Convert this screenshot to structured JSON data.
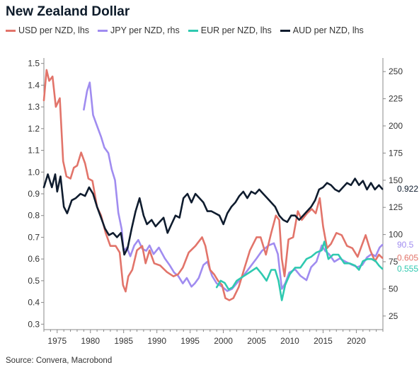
{
  "title": "New Zealand Dollar",
  "source": "Source: Convera, Macrobond",
  "colors": {
    "usd": "#e2746a",
    "jpy": "#a08cf0",
    "eur": "#2fc9b0",
    "aud": "#0f1c2e"
  },
  "chart_data": {
    "type": "line",
    "title": "New Zealand Dollar",
    "xlim": [
      1973,
      2024
    ],
    "x_ticks": [
      1975,
      1980,
      1985,
      1990,
      1995,
      2000,
      2005,
      2010,
      2015,
      2020
    ],
    "left_axis": {
      "ylim": [
        0.275,
        1.525
      ],
      "ticks": [
        "0.3",
        "0.4",
        "0.5",
        "0.6",
        "0.7",
        "0.8",
        "0.9",
        "1.0",
        "1.1",
        "1.2",
        "1.3",
        "1.4",
        "1.5"
      ]
    },
    "right_axis": {
      "ylim": [
        12.5,
        262.5
      ],
      "ticks": [
        "25",
        "50",
        "75",
        "100",
        "125",
        "150",
        "175",
        "200",
        "225",
        "250"
      ]
    },
    "grid": false,
    "legend_position": "top",
    "end_labels": {
      "aud": "0.922",
      "jpy": "90.5",
      "usd": "0.605",
      "eur": "0.555"
    },
    "series": [
      {
        "name": "USD per NZD, lhs",
        "key": "usd",
        "axis": "left",
        "x": [
          1973.0,
          1973.4,
          1973.8,
          1974.3,
          1974.8,
          1975.4,
          1975.9,
          1976.4,
          1977.0,
          1977.5,
          1978.0,
          1978.6,
          1979.2,
          1979.7,
          1980.3,
          1981.0,
          1981.6,
          1982.3,
          1983.0,
          1983.8,
          1984.4,
          1984.9,
          1985.3,
          1985.7,
          1986.3,
          1987.0,
          1987.8,
          1988.3,
          1988.9,
          1989.6,
          1990.5,
          1991.5,
          1992.5,
          1993.2,
          1993.9,
          1994.8,
          1995.8,
          1996.8,
          1997.3,
          1998.0,
          1998.6,
          1999.2,
          1999.8,
          2000.3,
          2000.9,
          2001.5,
          2002.3,
          2003.2,
          2004.0,
          2005.0,
          2005.6,
          2006.4,
          2007.2,
          2007.9,
          2008.4,
          2008.8,
          2009.2,
          2009.8,
          2010.5,
          2011.2,
          2011.8,
          2012.6,
          2013.3,
          2013.9,
          2014.5,
          2015.0,
          2015.6,
          2016.2,
          2017.0,
          2017.8,
          2018.6,
          2019.4,
          2020.2,
          2020.8,
          2021.4,
          2022.1,
          2022.8,
          2023.4,
          2023.9
        ],
        "y": [
          1.33,
          1.47,
          1.42,
          1.44,
          1.3,
          1.34,
          1.05,
          0.98,
          0.97,
          1.02,
          1.03,
          1.09,
          1.04,
          0.97,
          0.96,
          0.84,
          0.8,
          0.72,
          0.66,
          0.66,
          0.63,
          0.48,
          0.45,
          0.52,
          0.55,
          0.64,
          0.66,
          0.58,
          0.64,
          0.58,
          0.57,
          0.54,
          0.52,
          0.53,
          0.56,
          0.63,
          0.66,
          0.7,
          0.66,
          0.55,
          0.53,
          0.5,
          0.48,
          0.42,
          0.41,
          0.42,
          0.47,
          0.56,
          0.64,
          0.7,
          0.7,
          0.62,
          0.72,
          0.8,
          0.78,
          0.6,
          0.52,
          0.69,
          0.7,
          0.82,
          0.78,
          0.81,
          0.83,
          0.81,
          0.88,
          0.75,
          0.65,
          0.67,
          0.72,
          0.71,
          0.66,
          0.65,
          0.61,
          0.66,
          0.71,
          0.64,
          0.59,
          0.62,
          0.605
        ]
      },
      {
        "name": "JPY per NZD, rhs",
        "key": "jpy",
        "axis": "right",
        "x": [
          1979.0,
          1979.5,
          1979.9,
          1980.4,
          1981.0,
          1981.6,
          1982.1,
          1982.7,
          1983.2,
          1983.7,
          1984.2,
          1984.7,
          1985.0,
          1985.5,
          1986.0,
          1986.6,
          1987.2,
          1987.8,
          1988.4,
          1988.9,
          1989.5,
          1990.3,
          1991.2,
          1991.9,
          1992.6,
          1993.2,
          1993.9,
          1994.5,
          1995.2,
          1995.7,
          1996.3,
          1997.0,
          1997.6,
          1998.3,
          1999.0,
          1999.8,
          2000.6,
          2001.3,
          2002.0,
          2003.0,
          2004.0,
          2005.0,
          2005.8,
          2006.8,
          2007.6,
          2008.2,
          2008.8,
          2009.3,
          2009.9,
          2010.8,
          2011.6,
          2012.5,
          2013.2,
          2014.0,
          2014.8,
          2015.3,
          2015.9,
          2016.7,
          2017.5,
          2018.4,
          2019.4,
          2020.2,
          2020.9,
          2021.6,
          2022.3,
          2022.9,
          2023.5,
          2023.9
        ],
        "y": [
          215,
          232,
          240,
          210,
          200,
          190,
          180,
          175,
          160,
          150,
          120,
          105,
          85,
          88,
          80,
          90,
          95,
          87,
          85,
          90,
          82,
          88,
          78,
          72,
          65,
          62,
          55,
          60,
          52,
          55,
          60,
          72,
          75,
          62,
          55,
          52,
          48,
          50,
          55,
          62,
          70,
          78,
          85,
          90,
          92,
          82,
          50,
          55,
          65,
          68,
          62,
          58,
          70,
          75,
          90,
          85,
          82,
          75,
          78,
          75,
          72,
          70,
          72,
          79,
          82,
          80,
          88,
          90.5
        ]
      },
      {
        "name": "EUR per NZD, lhs",
        "key": "eur",
        "axis": "left",
        "x": [
          1999.0,
          1999.6,
          2000.2,
          2000.8,
          2001.4,
          2002.0,
          2003.0,
          2004.0,
          2005.0,
          2005.8,
          2006.5,
          2007.2,
          2007.8,
          2008.3,
          2008.8,
          2009.3,
          2010.0,
          2010.8,
          2011.6,
          2012.5,
          2013.2,
          2014.0,
          2014.8,
          2015.2,
          2015.8,
          2016.5,
          2017.3,
          2018.2,
          2019.0,
          2019.8,
          2020.4,
          2021.0,
          2021.7,
          2022.3,
          2022.9,
          2023.4,
          2023.9
        ],
        "y": [
          0.47,
          0.5,
          0.49,
          0.46,
          0.47,
          0.5,
          0.52,
          0.54,
          0.56,
          0.53,
          0.5,
          0.55,
          0.55,
          0.5,
          0.41,
          0.48,
          0.53,
          0.56,
          0.56,
          0.6,
          0.61,
          0.63,
          0.64,
          0.68,
          0.6,
          0.62,
          0.62,
          0.58,
          0.58,
          0.57,
          0.55,
          0.59,
          0.6,
          0.6,
          0.59,
          0.57,
          0.555
        ]
      },
      {
        "name": "AUD per NZD, lhs",
        "key": "aud",
        "axis": "left",
        "x": [
          1973.0,
          1973.6,
          1974.2,
          1974.7,
          1975.0,
          1975.5,
          1976.0,
          1976.5,
          1977.2,
          1977.8,
          1978.5,
          1979.2,
          1979.8,
          1980.4,
          1981.0,
          1981.6,
          1982.2,
          1982.8,
          1983.4,
          1984.0,
          1984.6,
          1985.1,
          1985.6,
          1986.2,
          1986.8,
          1987.4,
          1988.0,
          1988.5,
          1989.2,
          1989.8,
          1990.4,
          1991.0,
          1991.6,
          1992.2,
          1992.8,
          1993.4,
          1994.0,
          1994.6,
          1995.2,
          1995.8,
          1996.4,
          1997.0,
          1997.6,
          1998.2,
          1998.8,
          1999.4,
          2000.0,
          2000.6,
          2001.2,
          2001.8,
          2002.4,
          2003.0,
          2003.6,
          2004.2,
          2004.8,
          2005.4,
          2006.0,
          2006.6,
          2007.2,
          2007.8,
          2008.4,
          2009.0,
          2009.6,
          2010.2,
          2010.8,
          2011.4,
          2012.0,
          2012.6,
          2013.2,
          2013.8,
          2014.4,
          2015.0,
          2015.6,
          2016.2,
          2016.8,
          2017.4,
          2018.0,
          2018.6,
          2019.2,
          2019.8,
          2020.4,
          2021.0,
          2021.6,
          2022.2,
          2022.8,
          2023.4,
          2023.9
        ],
        "y": [
          0.93,
          0.99,
          0.93,
          0.99,
          0.91,
          0.98,
          0.84,
          0.81,
          0.87,
          0.88,
          0.9,
          0.89,
          0.93,
          0.9,
          0.84,
          0.79,
          0.74,
          0.71,
          0.72,
          0.7,
          0.72,
          0.62,
          0.65,
          0.74,
          0.82,
          0.88,
          0.8,
          0.76,
          0.78,
          0.75,
          0.77,
          0.79,
          0.72,
          0.76,
          0.8,
          0.79,
          0.88,
          0.9,
          0.86,
          0.9,
          0.88,
          0.86,
          0.82,
          0.82,
          0.81,
          0.8,
          0.76,
          0.81,
          0.84,
          0.86,
          0.89,
          0.91,
          0.88,
          0.91,
          0.9,
          0.92,
          0.9,
          0.88,
          0.86,
          0.84,
          0.8,
          0.78,
          0.77,
          0.8,
          0.8,
          0.78,
          0.8,
          0.82,
          0.84,
          0.87,
          0.92,
          0.93,
          0.95,
          0.94,
          0.92,
          0.91,
          0.93,
          0.95,
          0.94,
          0.97,
          0.94,
          0.96,
          0.92,
          0.95,
          0.92,
          0.94,
          0.922
        ]
      }
    ]
  }
}
